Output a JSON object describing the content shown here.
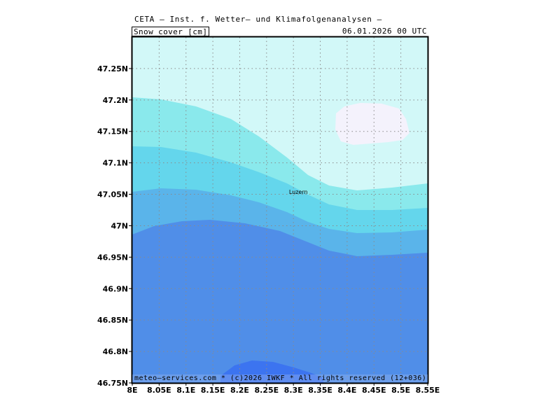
{
  "header": {
    "title": "CETA – Inst. f. Wetter– und Klimafolgenanalysen –",
    "field_label": "Snow_cover_[cm]",
    "valid_time": "06.01.2026 00 UTC"
  },
  "footer": {
    "credit": "meteo–services.com * (c)2026 IWKF * All rights reserved (12+036)"
  },
  "map": {
    "lon_range": [
      8.0,
      8.55
    ],
    "lat_range": [
      46.75,
      47.3
    ],
    "lat_ticks": [
      {
        "value": 47.25,
        "label": "47.25N"
      },
      {
        "value": 47.2,
        "label": "47.2N"
      },
      {
        "value": 47.15,
        "label": "47.15N"
      },
      {
        "value": 47.1,
        "label": "47.1N"
      },
      {
        "value": 47.05,
        "label": "47.05N"
      },
      {
        "value": 47.0,
        "label": "47N"
      },
      {
        "value": 46.95,
        "label": "46.95N"
      },
      {
        "value": 46.9,
        "label": "46.9N"
      },
      {
        "value": 46.85,
        "label": "46.85N"
      },
      {
        "value": 46.8,
        "label": "46.8N"
      },
      {
        "value": 46.75,
        "label": "46.75N"
      }
    ],
    "lon_ticks": [
      {
        "value": 8.0,
        "label": "8E"
      },
      {
        "value": 8.05,
        "label": "8.05E"
      },
      {
        "value": 8.1,
        "label": "8.1E"
      },
      {
        "value": 8.15,
        "label": "8.15E"
      },
      {
        "value": 8.2,
        "label": "8.2E"
      },
      {
        "value": 8.25,
        "label": "8.25E"
      },
      {
        "value": 8.3,
        "label": "8.3E"
      },
      {
        "value": 8.35,
        "label": "8.35E"
      },
      {
        "value": 8.4,
        "label": "8.4E"
      },
      {
        "value": 8.45,
        "label": "8.45E"
      },
      {
        "value": 8.5,
        "label": "8.5E"
      },
      {
        "value": 8.55,
        "label": "8.55E"
      }
    ],
    "grid": true,
    "cities": [
      {
        "name": "Luzern",
        "lon": 8.31,
        "lat": 47.05
      }
    ],
    "colors": {
      "band_1": "#d2f8f8",
      "band_2": "#8ae9ec",
      "band_3": "#64d6ec",
      "band_4": "#5ab4ea",
      "band_5": "#508ee8",
      "band_6": "#3c74f0",
      "patch_white": "#f4f2fc"
    }
  }
}
